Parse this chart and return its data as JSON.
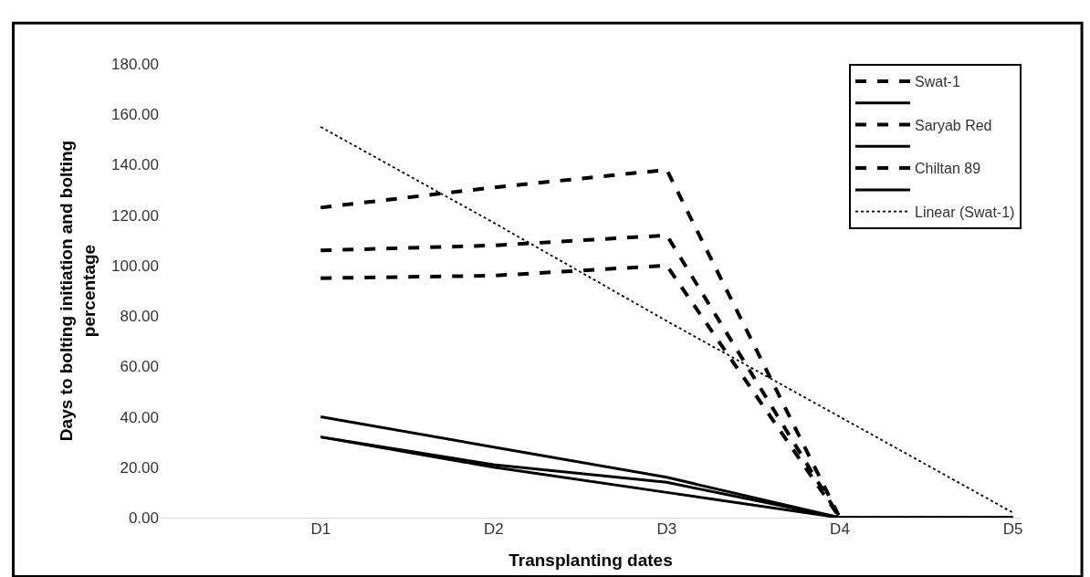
{
  "chart_data": {
    "type": "line",
    "xlabel": "Transplanting dates",
    "ylabel": "Days to bolting initiation and bolting percentage",
    "categories": [
      "D1",
      "D2",
      "D3",
      "D4",
      "D5"
    ],
    "series": [
      {
        "name": "Swat-1",
        "color": "#000000",
        "line_style": "dashed",
        "values": [
          123,
          131,
          138,
          0,
          0
        ]
      },
      {
        "color": "#000000",
        "line_style": "solid",
        "values": [
          40,
          28,
          16,
          0,
          0
        ]
      },
      {
        "name": "Saryab Red",
        "color": "#000000",
        "line_style": "dashed",
        "values": [
          106,
          108,
          112,
          0,
          0
        ]
      },
      {
        "color": "#000000",
        "line_style": "solid",
        "values": [
          32,
          21,
          14,
          0,
          0
        ]
      },
      {
        "name": "Chiltan 89",
        "color": "#000000",
        "line_style": "dashed",
        "values": [
          95,
          96,
          100,
          0,
          0
        ]
      },
      {
        "color": "#000000",
        "line_style": "solid",
        "values": [
          32,
          20,
          10,
          0,
          0
        ]
      },
      {
        "name": "Linear (Swat-1)",
        "color": "#000000",
        "line_style": "dotted",
        "values": [
          155,
          117,
          78,
          40,
          2
        ]
      }
    ],
    "ylim": [
      0,
      180
    ],
    "yticks": [
      {
        "value": 0,
        "label": "0.00"
      },
      {
        "value": 20,
        "label": "20.00"
      },
      {
        "value": 40,
        "label": "40.00"
      },
      {
        "value": 60,
        "label": "60.00"
      },
      {
        "value": 80,
        "label": "80.00"
      },
      {
        "value": 100,
        "label": "100.00"
      },
      {
        "value": 120,
        "label": "120.00"
      },
      {
        "value": 140,
        "label": "140.00"
      },
      {
        "value": 160,
        "label": "160.00"
      },
      {
        "value": 180,
        "label": "180.00"
      }
    ],
    "legend": "top right",
    "marker": "none"
  }
}
